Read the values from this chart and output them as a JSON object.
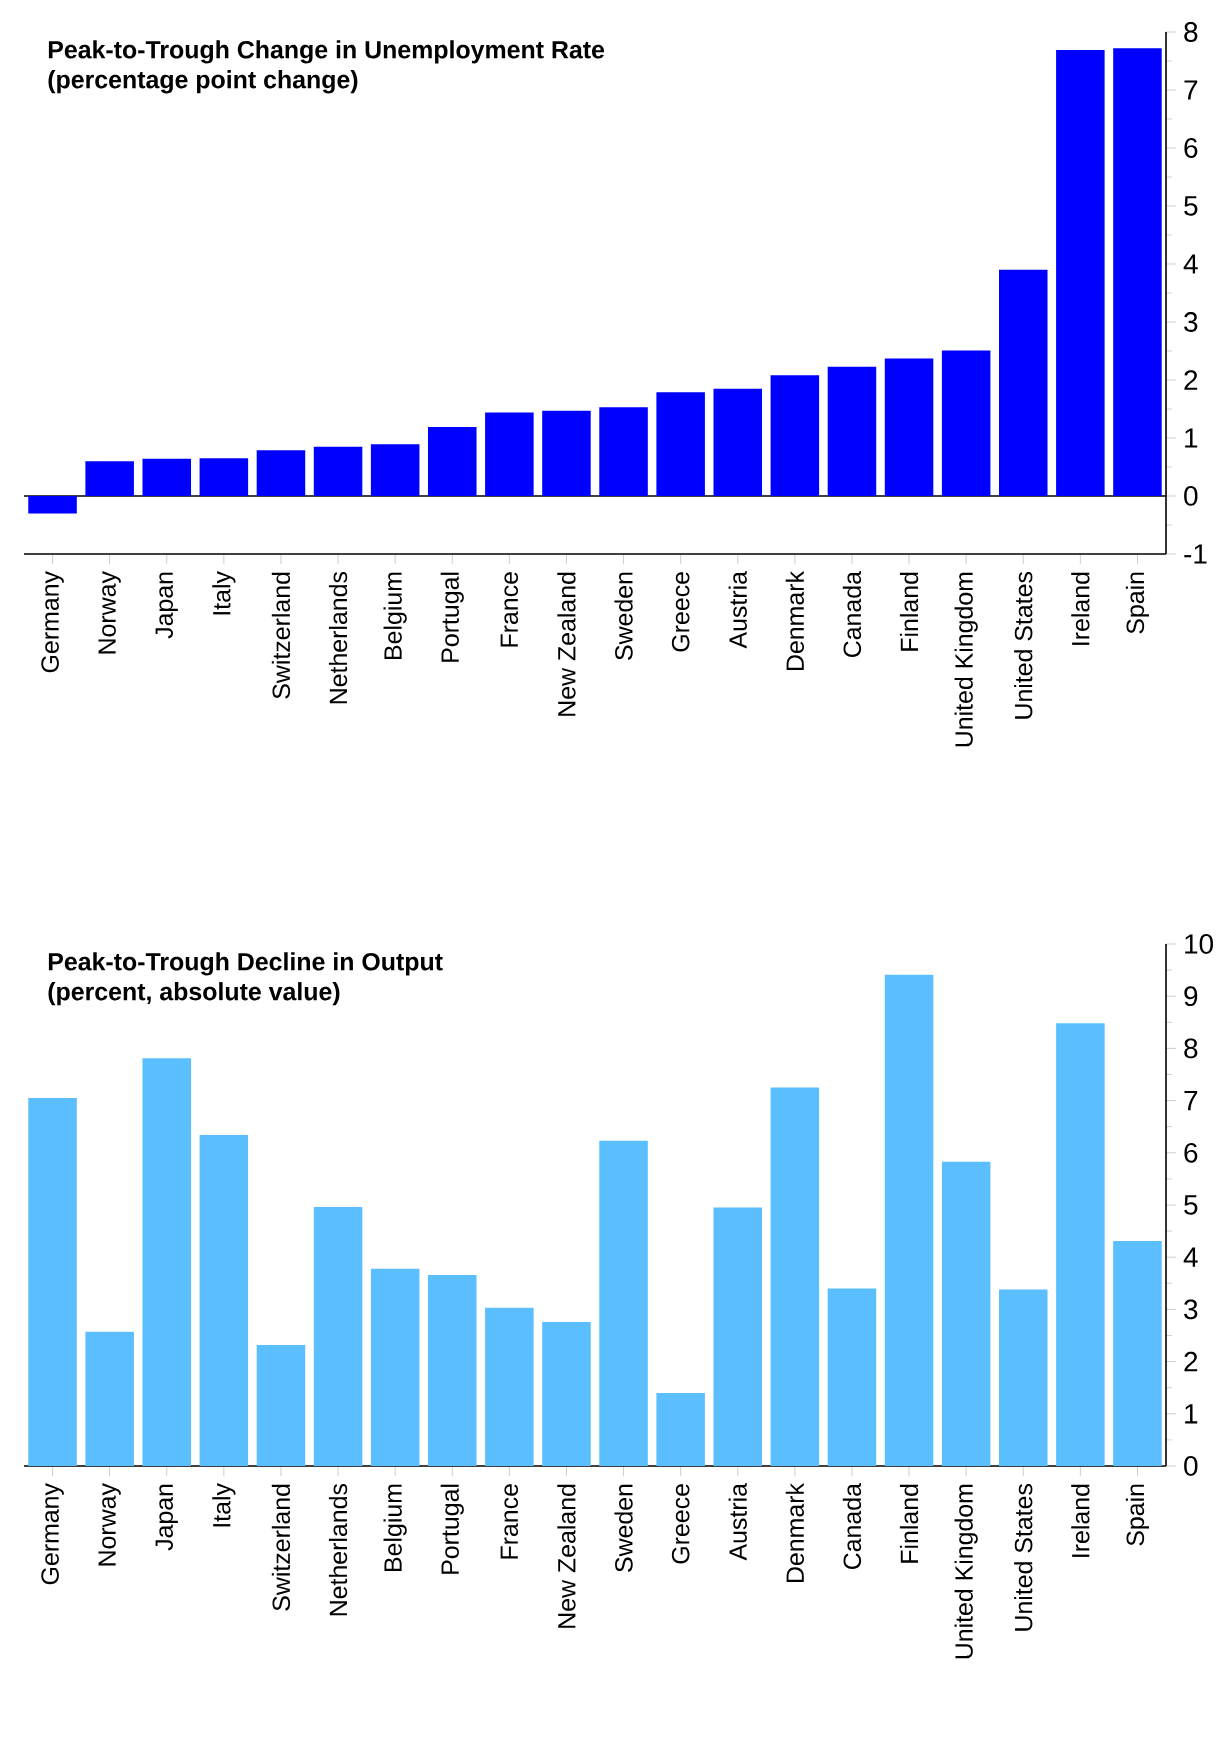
{
  "chart_data": [
    {
      "type": "bar",
      "title": "Peak-to-Trough Change in Unemployment Rate",
      "subtitle": "(percentage point change)",
      "categories": [
        "Germany",
        "Norway",
        "Japan",
        "Italy",
        "Switzerland",
        "Netherlands",
        "Belgium",
        "Portugal",
        "France",
        "New Zealand",
        "Sweden",
        "Greece",
        "Austria",
        "Denmark",
        "Canada",
        "Finland",
        "United Kingdom",
        "United States",
        "Ireland",
        "Spain"
      ],
      "values": [
        -0.3,
        0.6,
        0.64,
        0.65,
        0.79,
        0.85,
        0.89,
        1.19,
        1.44,
        1.47,
        1.53,
        1.79,
        1.85,
        2.08,
        2.23,
        2.37,
        2.51,
        3.9,
        7.69,
        7.72
      ],
      "color": "#0000ff",
      "ylim": [
        -1,
        8
      ],
      "yticks": [
        -1,
        0,
        1,
        2,
        3,
        4,
        5,
        6,
        7,
        8
      ]
    },
    {
      "type": "bar",
      "title": "Peak-to-Trough Decline in Output",
      "subtitle": "(percent, absolute value)",
      "categories": [
        "Germany",
        "Norway",
        "Japan",
        "Italy",
        "Switzerland",
        "Netherlands",
        "Belgium",
        "Portugal",
        "France",
        "New Zealand",
        "Sweden",
        "Greece",
        "Austria",
        "Denmark",
        "Canada",
        "Finland",
        "United Kingdom",
        "United States",
        "Ireland",
        "Spain"
      ],
      "values": [
        7.05,
        2.57,
        7.81,
        6.34,
        2.32,
        4.96,
        3.78,
        3.66,
        3.03,
        2.76,
        6.23,
        1.4,
        4.95,
        7.25,
        3.4,
        9.41,
        5.83,
        3.38,
        8.48,
        4.31
      ],
      "color": "#5bbfff",
      "ylim": [
        0,
        10
      ],
      "yticks": [
        0,
        1,
        2,
        3,
        4,
        5,
        6,
        7,
        8,
        9,
        10
      ]
    }
  ]
}
